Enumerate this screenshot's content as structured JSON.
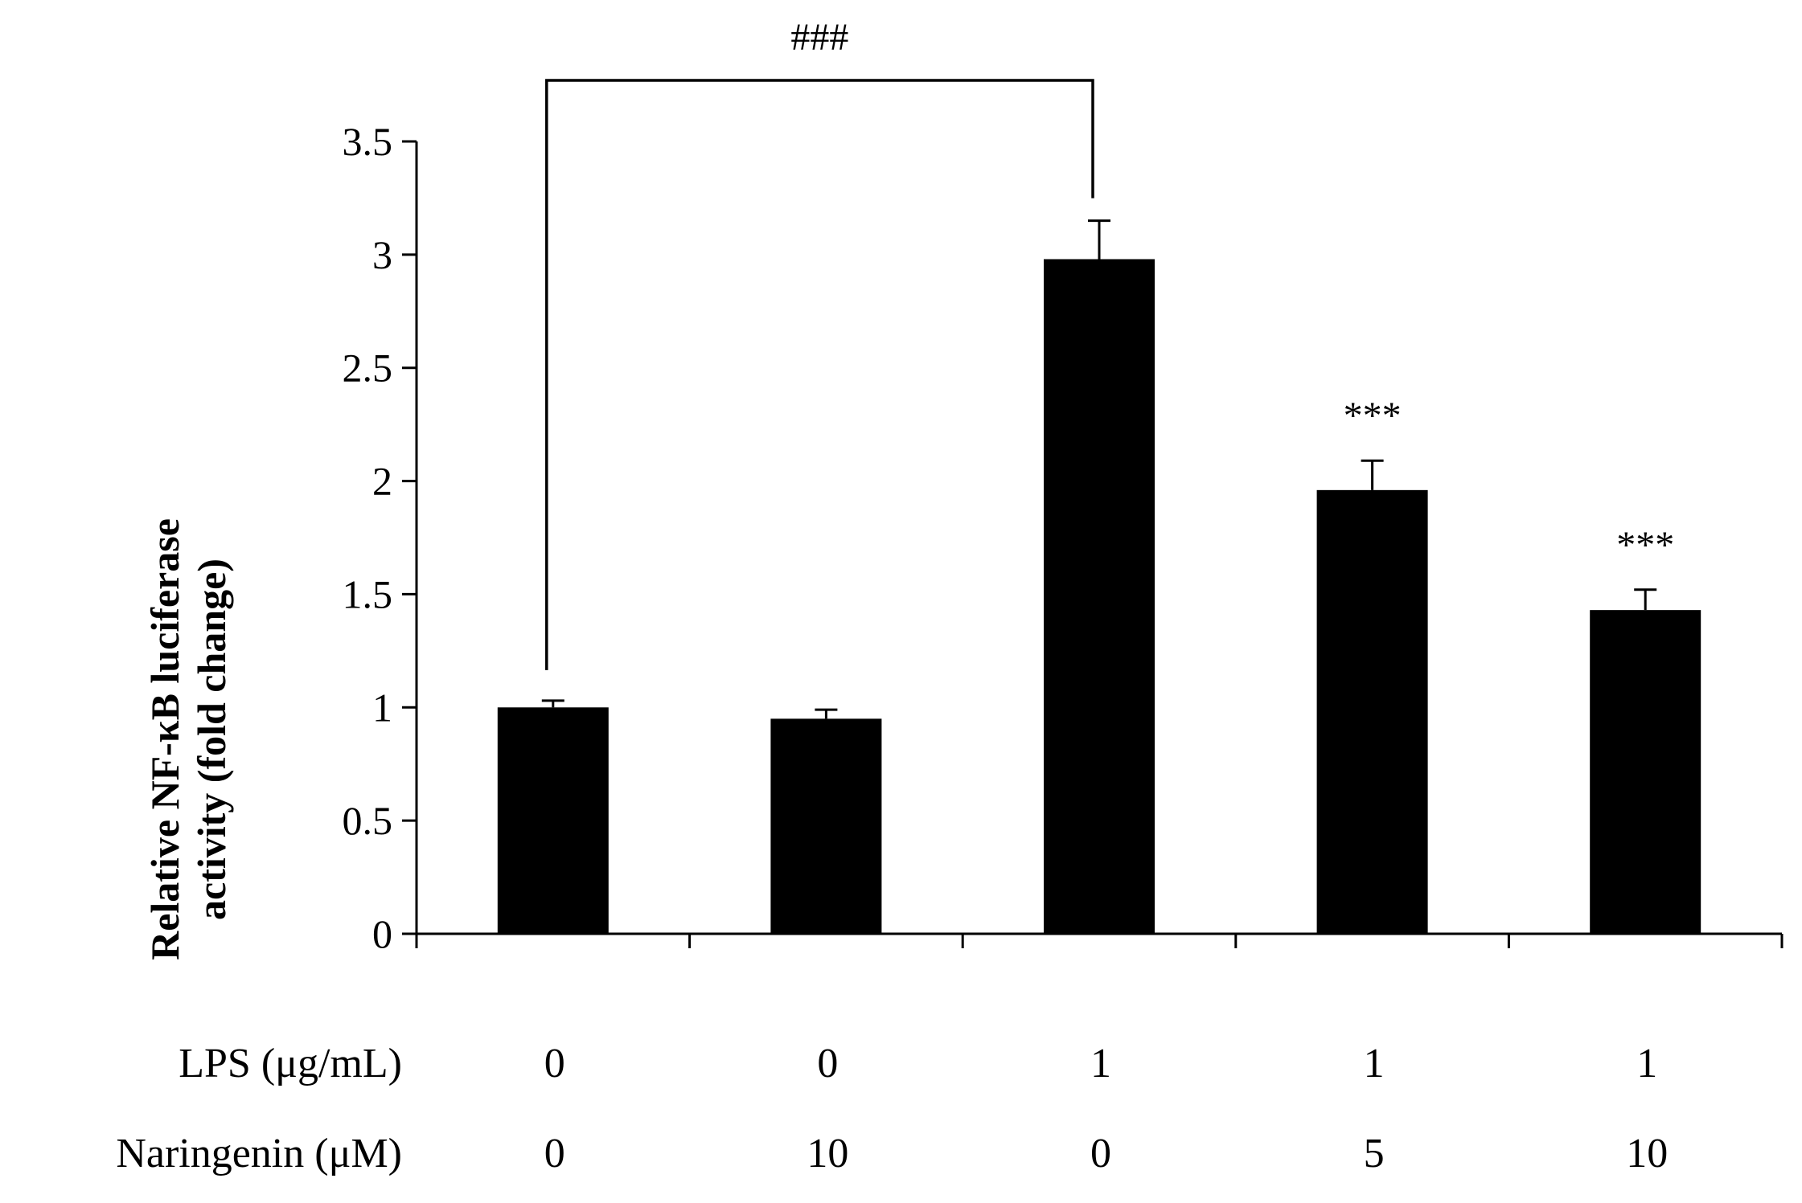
{
  "chart_data": {
    "type": "bar",
    "title": "",
    "ylabel": [
      "Relative NF-κB luciferase",
      "activity  (fold change)"
    ],
    "ylim": [
      0,
      3.5
    ],
    "yticks": [
      "0",
      "0.5",
      "1",
      "1.5",
      "2",
      "2.5",
      "3",
      "3.5"
    ],
    "bar_color": "#000000",
    "series": [
      {
        "values": [
          1.0,
          0.95,
          2.98,
          1.96,
          1.43
        ],
        "errors": [
          0.03,
          0.04,
          0.17,
          0.13,
          0.09
        ]
      }
    ],
    "conditions": [
      {
        "label": "LPS (μg/mL)",
        "values": [
          "0",
          "0",
          "1",
          "1",
          "1"
        ]
      },
      {
        "label": "Naringenin (μM)",
        "values": [
          "0",
          "10",
          "0",
          "5",
          "10"
        ]
      }
    ],
    "significance": {
      "bracket": {
        "from": 0,
        "to": 2,
        "label": "###"
      },
      "markers": [
        {
          "bar": 3,
          "label": "***"
        },
        {
          "bar": 4,
          "label": "***"
        }
      ]
    }
  }
}
